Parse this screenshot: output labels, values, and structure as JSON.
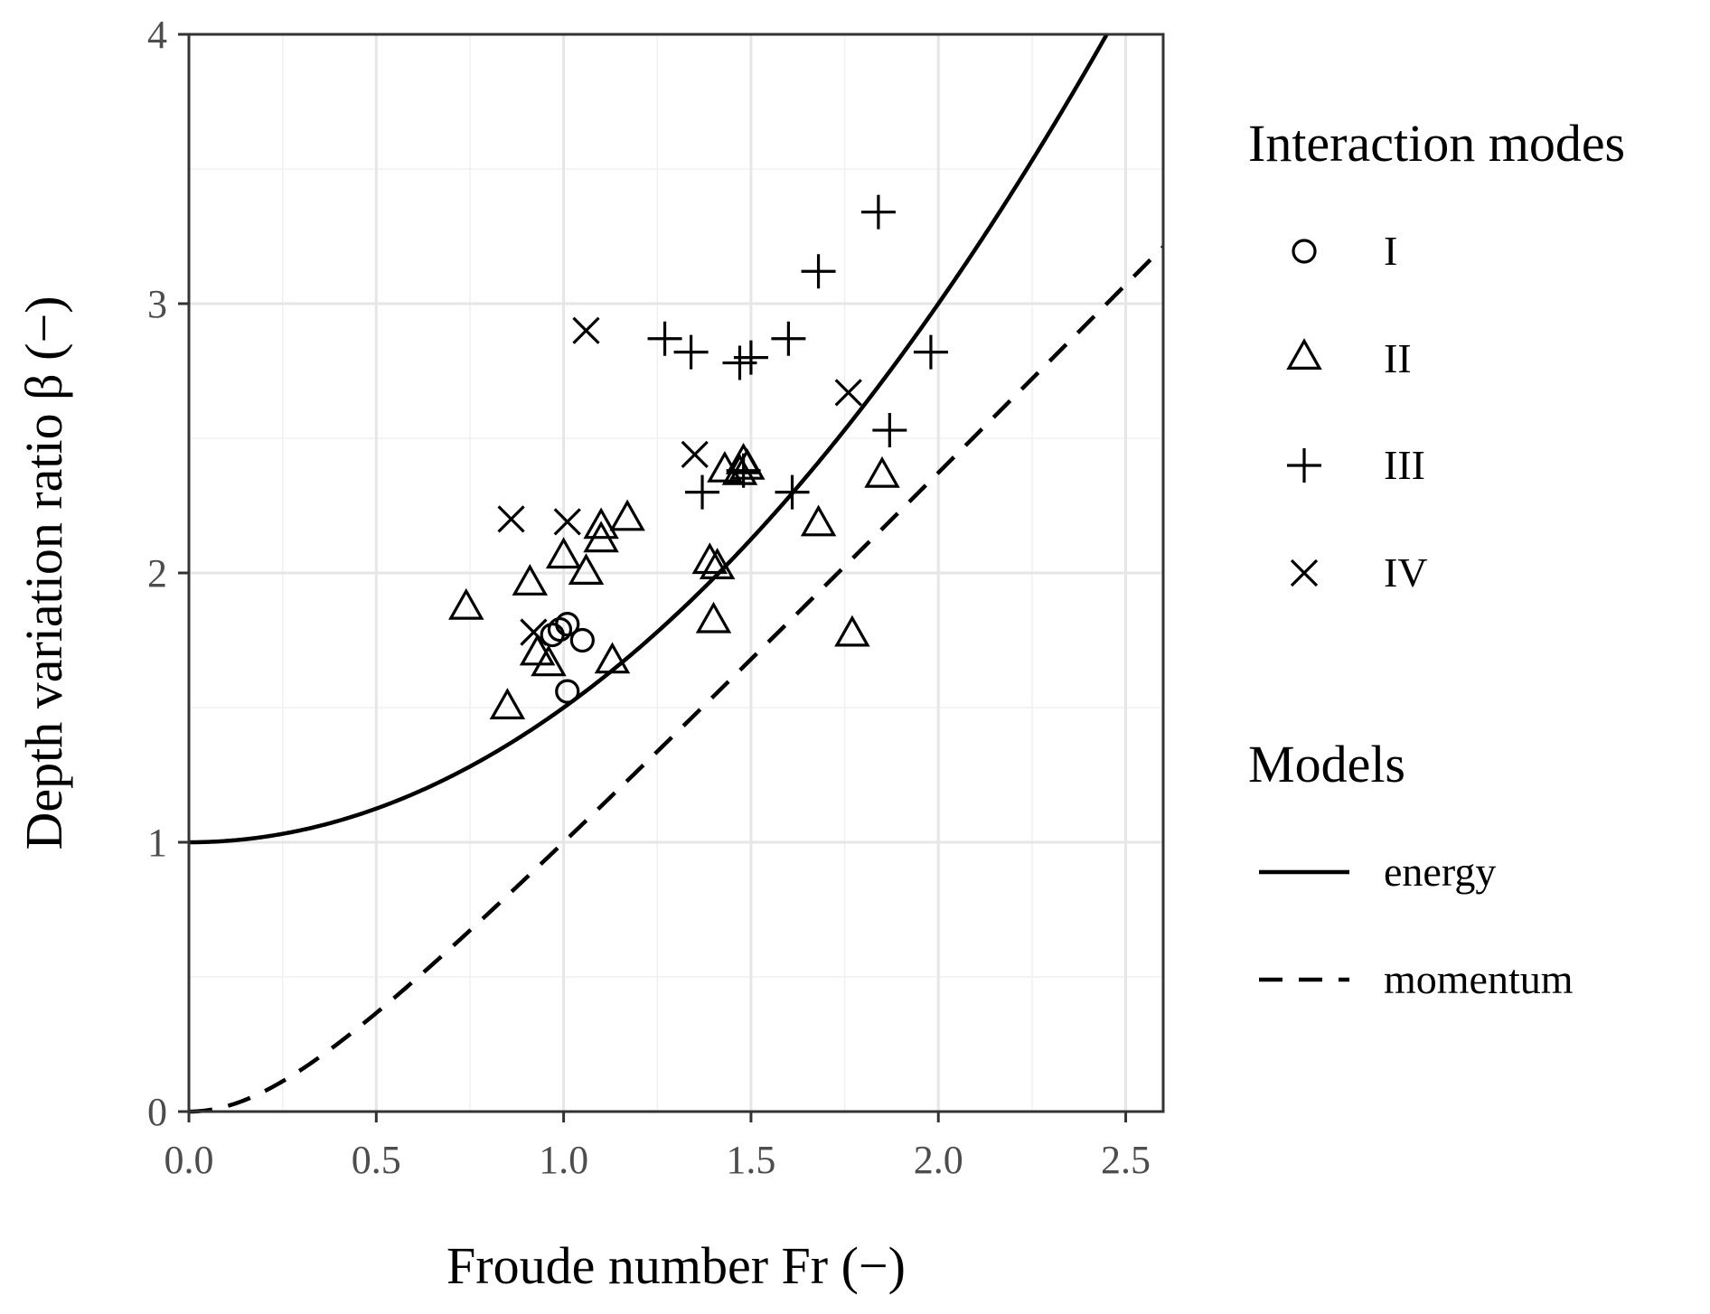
{
  "chart_data": {
    "type": "scatter",
    "title": "",
    "xlabel": "Froude number Fr (−)",
    "ylabel": "Depth variation ratio β (−)",
    "xlim": [
      0,
      2.6
    ],
    "ylim": [
      0,
      4
    ],
    "x_ticks": [
      "0.0",
      "0.5",
      "1.0",
      "1.5",
      "2.0",
      "2.5"
    ],
    "y_ticks": [
      "0",
      "1",
      "2",
      "3",
      "4"
    ],
    "grid": true,
    "legend_position": "right",
    "legend_groups": [
      {
        "title": "Interaction modes",
        "entries": [
          "I",
          "II",
          "III",
          "IV"
        ]
      },
      {
        "title": "Models",
        "entries": [
          "energy",
          "momentum"
        ]
      }
    ],
    "series": [
      {
        "name": "I",
        "marker": "circle",
        "x": [
          0.97,
          0.99,
          1.01,
          1.05,
          1.01
        ],
        "y": [
          1.77,
          1.79,
          1.81,
          1.75,
          1.56
        ]
      },
      {
        "name": "II",
        "marker": "triangle",
        "x": [
          0.74,
          0.85,
          0.91,
          0.93,
          0.96,
          1.0,
          1.06,
          1.1,
          1.1,
          1.17,
          1.13,
          1.39,
          1.41,
          1.4,
          1.43,
          1.47,
          1.49,
          1.48,
          1.68,
          1.77,
          1.85
        ],
        "y": [
          1.87,
          1.5,
          1.96,
          1.7,
          1.66,
          2.06,
          2.0,
          2.12,
          2.17,
          2.2,
          1.67,
          2.04,
          2.02,
          1.82,
          2.38,
          2.37,
          2.39,
          2.41,
          2.18,
          1.77,
          2.36
        ]
      },
      {
        "name": "III",
        "marker": "plus",
        "x": [
          1.27,
          1.34,
          1.37,
          1.48,
          1.47,
          1.5,
          1.6,
          1.61,
          1.68,
          1.84,
          1.87,
          1.98
        ],
        "y": [
          2.87,
          2.82,
          2.3,
          2.38,
          2.78,
          2.8,
          2.87,
          2.3,
          3.12,
          3.34,
          2.53,
          2.82
        ]
      },
      {
        "name": "IV",
        "marker": "cross",
        "x": [
          0.86,
          0.92,
          1.01,
          1.06,
          1.35,
          1.76
        ],
        "y": [
          2.2,
          1.78,
          2.19,
          2.9,
          2.44,
          2.67
        ]
      },
      {
        "name": "energy",
        "line": "solid",
        "formula": "beta = 1 + Fr^2/2"
      },
      {
        "name": "momentum",
        "line": "dashed",
        "formula": "beta = (sqrt(1 + 8 Fr^2) - 1) / 2"
      }
    ]
  }
}
